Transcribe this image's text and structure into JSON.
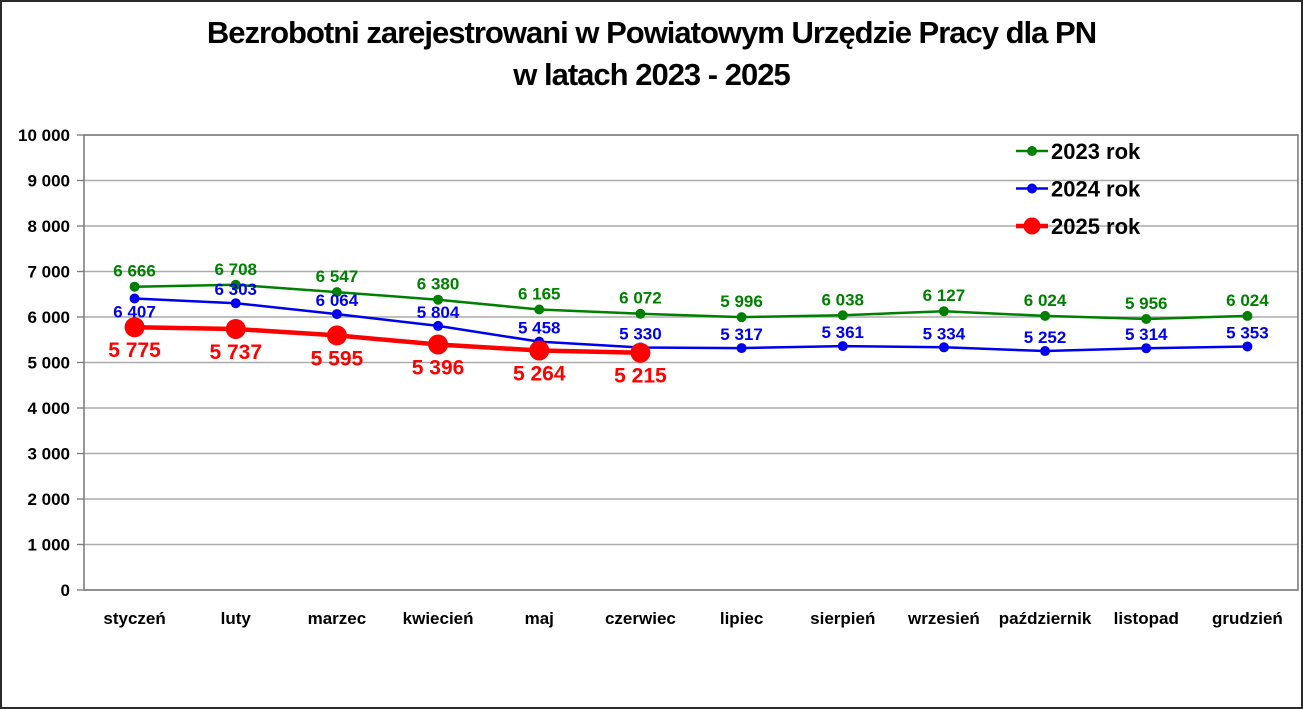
{
  "title": {
    "line1": "Bezrobotni zarejestrowani w Powiatowym Urzędzie Pracy dla PN",
    "line2": "w latach 2023 - 2025"
  },
  "chart_data": {
    "type": "line",
    "title": "Bezrobotni zarejestrowani w Powiatowym Urzędzie Pracy dla PN w latach 2023 - 2025",
    "categories": [
      "styczeń",
      "luty",
      "marzec",
      "kwiecień",
      "maj",
      "czerwiec",
      "lipiec",
      "sierpień",
      "wrzesień",
      "październik",
      "listopad",
      "grudzień"
    ],
    "series": [
      {
        "name": "2023 rok",
        "color": "#008000",
        "values": [
          6666,
          6708,
          6547,
          6380,
          6165,
          6072,
          5996,
          6038,
          6127,
          6024,
          5956,
          6024
        ],
        "label_pos": "above",
        "emphasis": false
      },
      {
        "name": "2024 rok",
        "color": "#0000f0",
        "values": [
          6407,
          6303,
          6064,
          5804,
          5458,
          5330,
          5317,
          5361,
          5334,
          5252,
          5314,
          5353
        ],
        "label_pos": "above",
        "label_pos_overrides": {
          "0": "below"
        },
        "emphasis": false
      },
      {
        "name": "2025 rok",
        "color": "#ff0000",
        "values": [
          5775,
          5737,
          5595,
          5396,
          5264,
          5215
        ],
        "label_pos": "below",
        "emphasis": true
      }
    ],
    "xlabel": "",
    "ylabel": "",
    "ylim": [
      0,
      10000
    ],
    "y_ticks": [
      0,
      1000,
      2000,
      3000,
      4000,
      5000,
      6000,
      7000,
      8000,
      9000,
      10000
    ],
    "grid": true,
    "legend_position": "top-right",
    "legend_entries": [
      "2023 rok",
      "2024 rok",
      "2025 rok"
    ]
  },
  "colors": {
    "grid": "#ababab",
    "plot_border": "#7f7f7f",
    "axis_text": "#000000",
    "background": "#ffffff"
  }
}
